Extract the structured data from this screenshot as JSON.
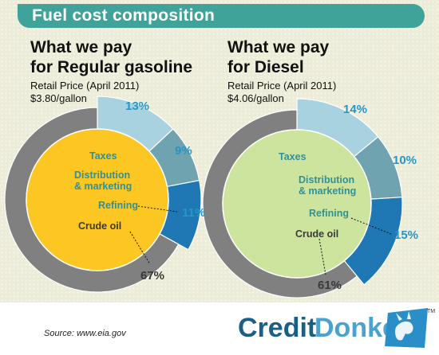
{
  "title": "Fuel cost composition",
  "source": "Source: www.eia.gov",
  "brand": {
    "credit": "Credit",
    "donkey": "Donkey",
    "tm": "TM"
  },
  "colors": {
    "title_bg": "#3fa39a",
    "teal_label": "#2f9199",
    "pct_label": "#2696c9",
    "taxes": "#a9d2e0",
    "distribution": "#6fa3b0",
    "refining": "#1f78b4",
    "crude": "#808080",
    "gasoline_center": "#fcc623",
    "diesel_center": "#cde49e"
  },
  "charts": [
    {
      "heading_line1": "What we pay",
      "heading_line2": "for Regular gasoline",
      "price_line1": "Retail Price (April 2011)",
      "price_line2": "$3.80/gallon",
      "labels": {
        "taxes": "Taxes",
        "distribution_1": "Distribution",
        "distribution_2": "& marketing",
        "refining": "Refining",
        "crude": "Crude oil"
      },
      "percent_labels": [
        "13%",
        "9%",
        "11%",
        "67%"
      ]
    },
    {
      "heading_line1": "What we pay",
      "heading_line2": "for Diesel",
      "price_line1": "Retail Price (April 2011)",
      "price_line2": "$4.06/gallon",
      "labels": {
        "taxes": "Taxes",
        "distribution_1": "Distribution",
        "distribution_2": "& marketing",
        "refining": "Refining",
        "crude": "Crude oil"
      },
      "percent_labels": [
        "14%",
        "10%",
        "15%",
        "61%"
      ]
    }
  ],
  "chart_data": [
    {
      "type": "pie",
      "title": "What we pay for Regular gasoline",
      "subtitle": "Retail Price (April 2011) $3.80/gallon",
      "categories": [
        "Taxes",
        "Distribution & marketing",
        "Refining",
        "Crude oil"
      ],
      "values": [
        13,
        9,
        11,
        67
      ],
      "unit": "%",
      "colors": [
        "#a9d2e0",
        "#6fa3b0",
        "#1f78b4",
        "#808080"
      ]
    },
    {
      "type": "pie",
      "title": "What we pay for Diesel",
      "subtitle": "Retail Price (April 2011) $4.06/gallon",
      "categories": [
        "Taxes",
        "Distribution & marketing",
        "Refining",
        "Crude oil"
      ],
      "values": [
        14,
        10,
        15,
        61
      ],
      "unit": "%",
      "colors": [
        "#a9d2e0",
        "#6fa3b0",
        "#1f78b4",
        "#808080"
      ]
    }
  ]
}
